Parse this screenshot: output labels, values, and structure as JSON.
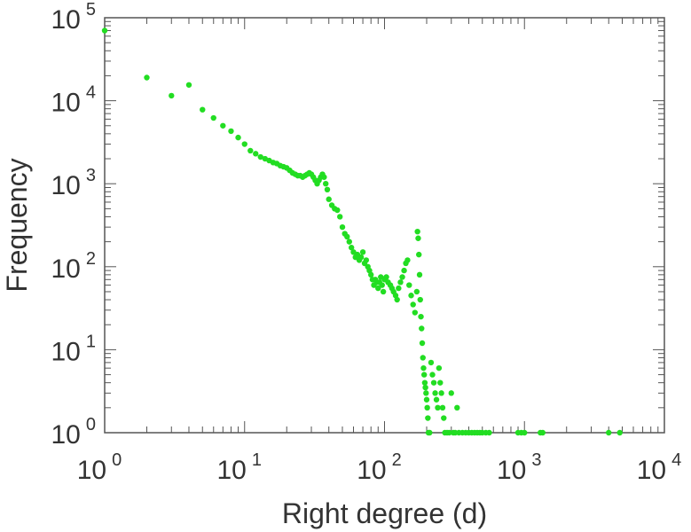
{
  "chart_data": {
    "type": "scatter",
    "title": "",
    "xlabel": "Right degree (d)",
    "ylabel": "Frequency",
    "xscale": "log",
    "yscale": "log",
    "xlim": [
      1,
      10000
    ],
    "ylim": [
      1,
      100000
    ],
    "grid": false,
    "legend": "none",
    "marker_color": "#22dd22",
    "x_ticks": [
      {
        "base": "10",
        "exp": "0",
        "value": 1
      },
      {
        "base": "10",
        "exp": "1",
        "value": 10
      },
      {
        "base": "10",
        "exp": "2",
        "value": 100
      },
      {
        "base": "10",
        "exp": "3",
        "value": 1000
      },
      {
        "base": "10",
        "exp": "4",
        "value": 10000
      }
    ],
    "y_ticks": [
      {
        "base": "10",
        "exp": "0",
        "value": 1
      },
      {
        "base": "10",
        "exp": "1",
        "value": 10
      },
      {
        "base": "10",
        "exp": "2",
        "value": 100
      },
      {
        "base": "10",
        "exp": "3",
        "value": 1000
      },
      {
        "base": "10",
        "exp": "4",
        "value": 10000
      },
      {
        "base": "10",
        "exp": "5",
        "value": 100000
      }
    ],
    "points": [
      [
        1,
        70000
      ],
      [
        2,
        19000
      ],
      [
        3,
        11500
      ],
      [
        4,
        15500
      ],
      [
        5,
        7800
      ],
      [
        6,
        6200
      ],
      [
        7,
        5000
      ],
      [
        8,
        4300
      ],
      [
        9,
        3600
      ],
      [
        10,
        3000
      ],
      [
        11,
        2500
      ],
      [
        12,
        2300
      ],
      [
        13,
        2100
      ],
      [
        14,
        2000
      ],
      [
        15,
        1900
      ],
      [
        16,
        1800
      ],
      [
        17,
        1750
      ],
      [
        18,
        1650
      ],
      [
        19,
        1600
      ],
      [
        20,
        1550
      ],
      [
        21,
        1450
      ],
      [
        22,
        1350
      ],
      [
        23,
        1300
      ],
      [
        24,
        1250
      ],
      [
        25,
        1250
      ],
      [
        26,
        1200
      ],
      [
        27,
        1250
      ],
      [
        28,
        1300
      ],
      [
        29,
        1350
      ],
      [
        30,
        1300
      ],
      [
        31,
        1200
      ],
      [
        32,
        1100
      ],
      [
        33,
        1000
      ],
      [
        34,
        1100
      ],
      [
        35,
        1200
      ],
      [
        36,
        1300
      ],
      [
        37,
        1200
      ],
      [
        38,
        1000
      ],
      [
        39,
        850
      ],
      [
        40,
        650
      ],
      [
        42,
        550
      ],
      [
        44,
        500
      ],
      [
        46,
        480
      ],
      [
        48,
        400
      ],
      [
        50,
        300
      ],
      [
        52,
        250
      ],
      [
        54,
        230
      ],
      [
        56,
        200
      ],
      [
        58,
        170
      ],
      [
        60,
        150
      ],
      [
        62,
        130
      ],
      [
        64,
        140
      ],
      [
        66,
        120
      ],
      [
        68,
        130
      ],
      [
        70,
        150
      ],
      [
        72,
        110
      ],
      [
        74,
        120
      ],
      [
        76,
        100
      ],
      [
        78,
        90
      ],
      [
        80,
        80
      ],
      [
        82,
        70
      ],
      [
        84,
        60
      ],
      [
        86,
        70
      ],
      [
        88,
        65
      ],
      [
        90,
        55
      ],
      [
        92,
        65
      ],
      [
        94,
        75
      ],
      [
        96,
        60
      ],
      [
        98,
        50
      ],
      [
        100,
        70
      ],
      [
        103,
        75
      ],
      [
        106,
        65
      ],
      [
        110,
        60
      ],
      [
        113,
        55
      ],
      [
        116,
        50
      ],
      [
        120,
        45
      ],
      [
        123,
        40
      ],
      [
        126,
        55
      ],
      [
        130,
        65
      ],
      [
        134,
        75
      ],
      [
        138,
        90
      ],
      [
        142,
        110
      ],
      [
        146,
        120
      ],
      [
        150,
        60
      ],
      [
        155,
        45
      ],
      [
        160,
        35
      ],
      [
        165,
        28
      ],
      [
        170,
        50
      ],
      [
        172,
        265
      ],
      [
        174,
        220
      ],
      [
        176,
        140
      ],
      [
        178,
        80
      ],
      [
        180,
        40
      ],
      [
        182,
        25
      ],
      [
        184,
        18
      ],
      [
        186,
        12
      ],
      [
        188,
        8
      ],
      [
        190,
        6
      ],
      [
        192,
        5
      ],
      [
        194,
        4
      ],
      [
        196,
        3.5
      ],
      [
        198,
        3
      ],
      [
        200,
        2.5
      ],
      [
        202,
        2
      ],
      [
        204,
        1.5
      ],
      [
        206,
        1
      ],
      [
        210,
        1
      ],
      [
        215,
        7
      ],
      [
        220,
        5
      ],
      [
        225,
        4
      ],
      [
        230,
        3
      ],
      [
        235,
        2.5
      ],
      [
        240,
        2
      ],
      [
        245,
        6
      ],
      [
        250,
        4
      ],
      [
        255,
        3
      ],
      [
        260,
        2
      ],
      [
        265,
        1.5
      ],
      [
        270,
        1
      ],
      [
        280,
        1
      ],
      [
        290,
        1
      ],
      [
        300,
        3
      ],
      [
        310,
        1
      ],
      [
        320,
        1
      ],
      [
        330,
        2
      ],
      [
        340,
        1
      ],
      [
        360,
        1
      ],
      [
        380,
        1
      ],
      [
        400,
        1
      ],
      [
        420,
        1
      ],
      [
        440,
        1
      ],
      [
        460,
        1
      ],
      [
        480,
        1
      ],
      [
        500,
        1
      ],
      [
        530,
        1
      ],
      [
        560,
        1
      ],
      [
        900,
        1
      ],
      [
        950,
        1
      ],
      [
        1000,
        1
      ],
      [
        1300,
        1
      ],
      [
        1350,
        1
      ],
      [
        4000,
        1
      ],
      [
        4800,
        1
      ]
    ]
  }
}
